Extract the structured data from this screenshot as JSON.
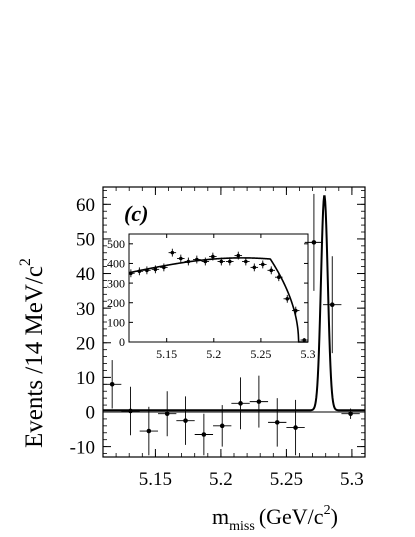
{
  "chart_data": [
    {
      "type": "scatter",
      "panel_label": "(c)",
      "xlabel": {
        "main": "m",
        "sub": "miss",
        "unit": "(GeV/c",
        "sup": "2",
        "close": ")"
      },
      "ylabel": {
        "main": "Events /14 MeV/c",
        "sup": "2"
      },
      "xlim": [
        5.11,
        5.31
      ],
      "ylim": [
        -13,
        65
      ],
      "x_ticks": [
        5.15,
        5.2,
        5.25,
        5.3
      ],
      "x_tick_labels": [
        "5.15",
        "5.2",
        "5.25",
        "5.3"
      ],
      "y_ticks": [
        -10,
        0,
        10,
        20,
        30,
        40,
        50,
        60
      ],
      "y_tick_labels": [
        "-10",
        "0",
        "10",
        "20",
        "30",
        "40",
        "50",
        "60"
      ],
      "grid": false,
      "series": [
        {
          "kind": "data_points_with_errors",
          "x": [
            5.117,
            5.131,
            5.145,
            5.159,
            5.173,
            5.187,
            5.201,
            5.215,
            5.229,
            5.243,
            5.257,
            5.271,
            5.285,
            5.299
          ],
          "y": [
            8,
            0.3,
            -5.5,
            -0.5,
            -2.5,
            -6.5,
            -4,
            2.5,
            3,
            -3,
            -4.5,
            49,
            31,
            -0.5
          ],
          "yerr": [
            7,
            7,
            7,
            6.5,
            7,
            6,
            6,
            7.5,
            7.5,
            7,
            8,
            14,
            14,
            1.5
          ],
          "xerr": 0.007
        },
        {
          "kind": "fit_curve",
          "model": "gaussian_peak_plus_flat_background",
          "peak_x": 5.279,
          "peak_height": 62,
          "peak_sigma": 0.0026,
          "background_level": 0.5
        }
      ]
    },
    {
      "type": "scatter",
      "inset": true,
      "xlim": [
        5.11,
        5.3
      ],
      "ylim": [
        0,
        550
      ],
      "x_ticks": [
        5.15,
        5.2,
        5.25,
        5.3
      ],
      "x_tick_labels": [
        "5.15",
        "5.2",
        "5.25",
        "5.3"
      ],
      "y_ticks": [
        0,
        100,
        200,
        300,
        400,
        500
      ],
      "y_tick_labels": [
        "0",
        "100",
        "200",
        "300",
        "400",
        "500"
      ],
      "grid": false,
      "series": [
        {
          "kind": "data_points_with_errors",
          "x": [
            5.112,
            5.121,
            5.129,
            5.138,
            5.147,
            5.156,
            5.165,
            5.173,
            5.182,
            5.191,
            5.199,
            5.208,
            5.217,
            5.226,
            5.234,
            5.243,
            5.252,
            5.261,
            5.269,
            5.278,
            5.287,
            5.296
          ],
          "y": [
            350,
            360,
            365,
            370,
            380,
            455,
            425,
            410,
            420,
            410,
            435,
            410,
            410,
            440,
            410,
            380,
            395,
            365,
            330,
            220,
            160,
            10
          ],
          "yerr": [
            20,
            20,
            20,
            20,
            20,
            20,
            20,
            20,
            20,
            20,
            20,
            20,
            20,
            20,
            20,
            20,
            20,
            20,
            20,
            20,
            20,
            10
          ],
          "xerr": 0.004
        },
        {
          "kind": "fit_curve",
          "model": "argus_function",
          "endpoint": 5.29,
          "amplitude": 420
        }
      ]
    }
  ]
}
